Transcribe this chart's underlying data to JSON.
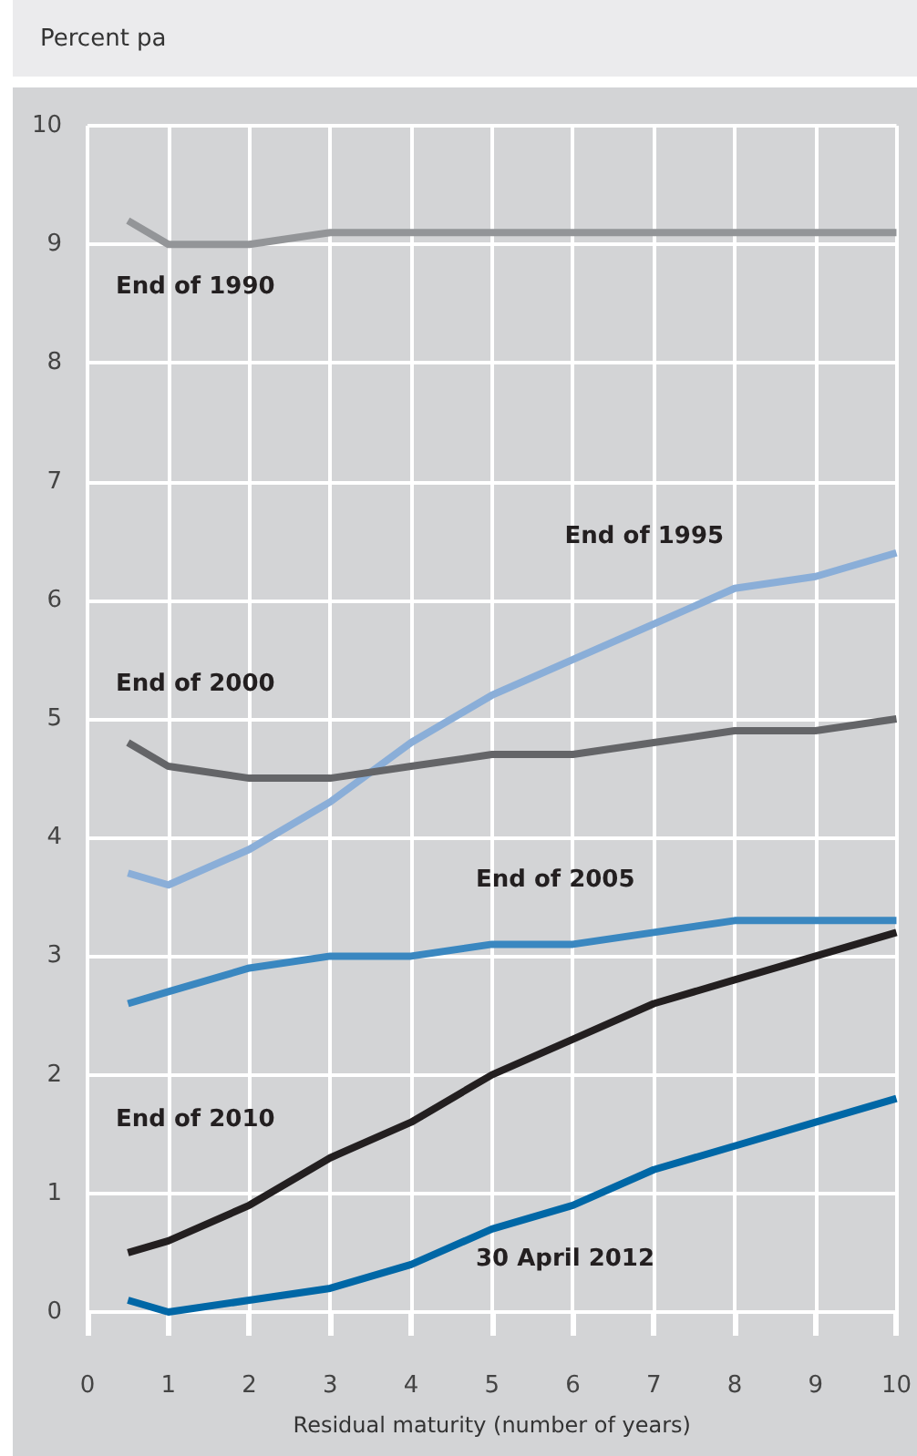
{
  "chart_data": {
    "type": "line",
    "ylabel": "Percent pa",
    "xlabel": "Residual maturity (number of years)",
    "x": [
      0.5,
      1,
      2,
      3,
      4,
      5,
      6,
      7,
      8,
      9,
      10
    ],
    "series": [
      {
        "name": "End of 1990",
        "color": "#939598",
        "values": [
          9.2,
          9.0,
          9.0,
          9.1,
          9.1,
          9.1,
          9.1,
          9.1,
          9.1,
          9.1,
          9.1
        ]
      },
      {
        "name": "End of 1995",
        "color": "#8aaed8",
        "values": [
          3.7,
          3.6,
          3.9,
          4.3,
          4.8,
          5.2,
          5.5,
          5.8,
          6.1,
          6.2,
          6.4
        ]
      },
      {
        "name": "End of 2000",
        "color": "#646568",
        "values": [
          4.8,
          4.6,
          4.5,
          4.5,
          4.6,
          4.7,
          4.7,
          4.8,
          4.9,
          4.9,
          5.0
        ]
      },
      {
        "name": "End of 2005",
        "color": "#3a87c0",
        "values": [
          2.6,
          2.7,
          2.9,
          3.0,
          3.0,
          3.1,
          3.1,
          3.2,
          3.3,
          3.3,
          3.3
        ]
      },
      {
        "name": "End of 2010",
        "color": "#231f20",
        "values": [
          0.5,
          0.6,
          0.9,
          1.3,
          1.6,
          2.0,
          2.3,
          2.6,
          2.8,
          3.0,
          3.2
        ]
      },
      {
        "name": "30 April 2012",
        "color": "#0067a6",
        "values": [
          0.1,
          0.0,
          0.1,
          0.2,
          0.4,
          0.7,
          0.9,
          1.2,
          1.4,
          1.6,
          1.8
        ]
      }
    ],
    "xlim": [
      0,
      10
    ],
    "xticks": [
      0,
      1,
      2,
      3,
      4,
      5,
      6,
      7,
      8,
      9,
      10
    ],
    "ylim": [
      0,
      10
    ],
    "yticks": [
      0,
      1,
      2,
      3,
      4,
      5,
      6,
      7,
      8,
      9,
      10
    ],
    "grid": true,
    "legend": false,
    "marker": "none",
    "line_style": "solid"
  }
}
